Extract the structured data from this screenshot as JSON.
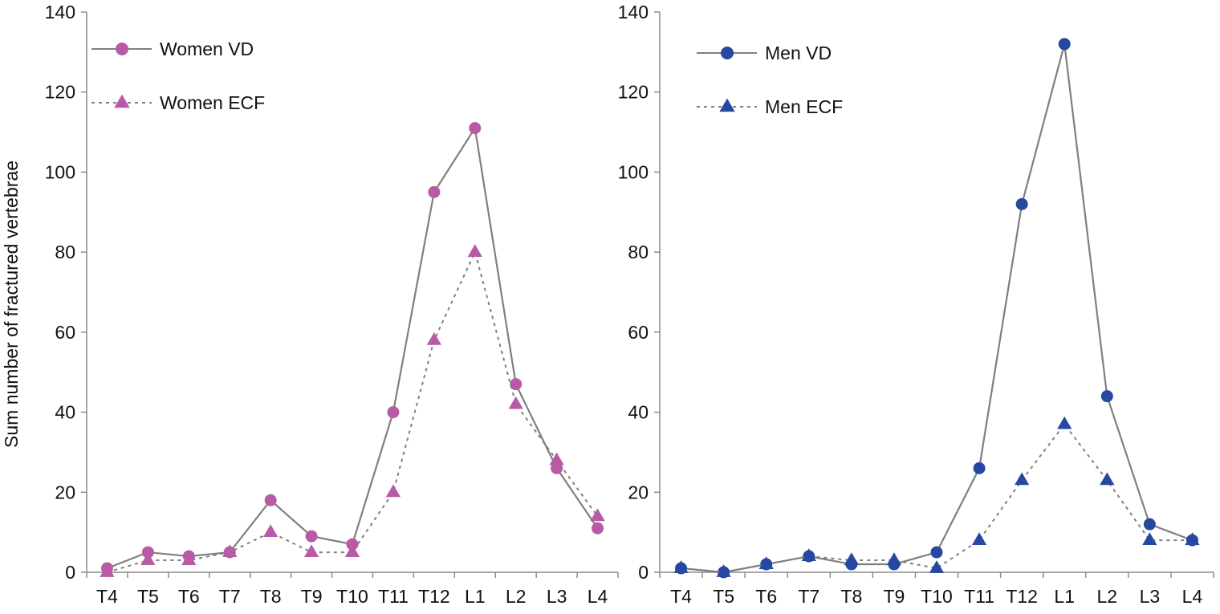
{
  "colors": {
    "women_marker": "#b85aa5",
    "men_marker": "#2748a2",
    "line": "#7f7f7f",
    "axis": "#8c8c8c"
  },
  "chart_data": [
    {
      "type": "line",
      "ylabel": "Sum number of fractured vertebrae",
      "ylim": [
        0,
        140
      ],
      "yticks": [
        "0",
        "20",
        "40",
        "60",
        "80",
        "100",
        "120",
        "140"
      ],
      "categories": [
        "T4",
        "T5",
        "T6",
        "T7",
        "T8",
        "T9",
        "T10",
        "T11",
        "T12",
        "L1",
        "L2",
        "L3",
        "L4"
      ],
      "legend_position": "top-left",
      "series": [
        {
          "name": "Women VD",
          "marker": "circle",
          "dash": "solid",
          "color": "#b85aa5",
          "values": [
            1,
            5,
            4,
            5,
            18,
            9,
            7,
            40,
            95,
            111,
            47,
            26,
            11
          ]
        },
        {
          "name": "Women ECF",
          "marker": "triangle",
          "dash": "dotted",
          "color": "#b85aa5",
          "values": [
            0,
            3,
            3,
            5,
            10,
            5,
            5,
            20,
            58,
            80,
            42,
            28,
            14
          ]
        }
      ]
    },
    {
      "type": "line",
      "ylabel": "",
      "ylim": [
        0,
        140
      ],
      "yticks": [
        "0",
        "20",
        "40",
        "60",
        "80",
        "100",
        "120",
        "140"
      ],
      "categories": [
        "T4",
        "T5",
        "T6",
        "T7",
        "T8",
        "T9",
        "T10",
        "T11",
        "T12",
        "L1",
        "L2",
        "L3",
        "L4"
      ],
      "legend_position": "top-left",
      "series": [
        {
          "name": "Men VD",
          "marker": "circle",
          "dash": "solid",
          "color": "#2748a2",
          "values": [
            1,
            0,
            2,
            4,
            2,
            2,
            5,
            26,
            92,
            132,
            44,
            12,
            8
          ]
        },
        {
          "name": "Men ECF",
          "marker": "triangle",
          "dash": "dotted",
          "color": "#2748a2",
          "values": [
            1,
            0,
            2,
            4,
            3,
            3,
            1,
            8,
            23,
            37,
            23,
            8,
            8
          ]
        }
      ]
    }
  ]
}
